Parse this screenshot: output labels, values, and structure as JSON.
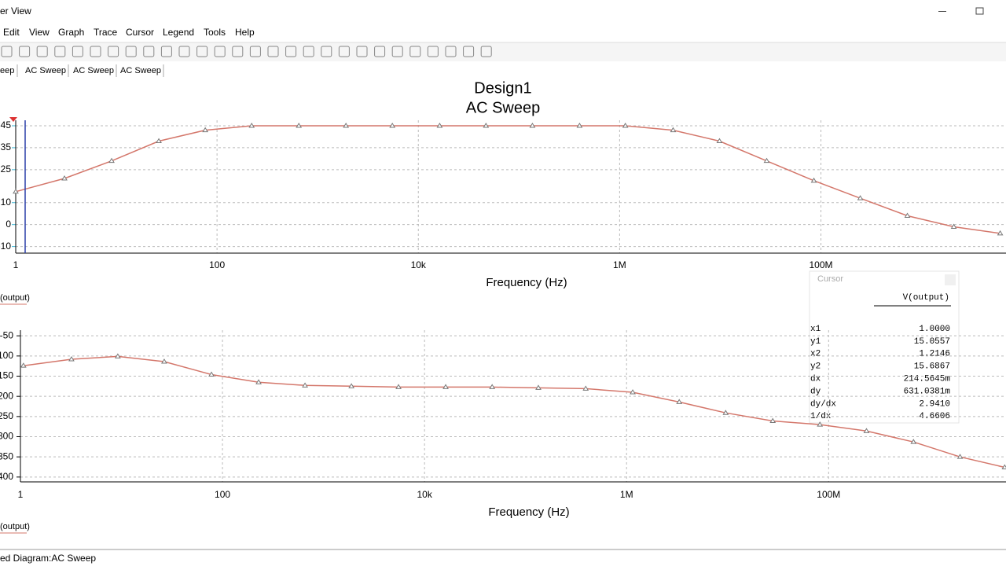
{
  "window_title": "er View",
  "menu": [
    "Edit",
    "View",
    "Graph",
    "Trace",
    "Cursor",
    "Legend",
    "Tools",
    "Help"
  ],
  "tabs": [
    "eep",
    "AC Sweep",
    "AC Sweep",
    "AC Sweep"
  ],
  "status": "ed Diagram:AC Sweep",
  "cursor_panel": {
    "title": "Cursor",
    "column": "V(output)",
    "rows": [
      [
        "x1",
        "1.0000"
      ],
      [
        "y1",
        "15.0557"
      ],
      [
        "x2",
        "1.2146"
      ],
      [
        "y2",
        "15.6867"
      ],
      [
        "dx",
        "214.5645m"
      ],
      [
        "dy",
        "631.0381m"
      ],
      [
        "dy/dx",
        "2.9410"
      ],
      [
        "1/dx",
        "4.6606"
      ]
    ]
  },
  "chart_data": [
    {
      "type": "line",
      "title": "Design1",
      "subtitle": "AC Sweep",
      "x_label": "Frequency (Hz)",
      "xscale": "log",
      "grid": true,
      "x": [
        1,
        3.05,
        8.97,
        26.4,
        76.4,
        221,
        650,
        1910,
        5520,
        16300,
        47000,
        136000,
        400000,
        1140000,
        3400000,
        9820000,
        28900000,
        85100000,
        246000000,
        723000000,
        2090000000,
        6040000000
      ],
      "series": [
        {
          "name": "(output)",
          "color": "#d4776b",
          "values": [
            15,
            21,
            29,
            38,
            43,
            45,
            45,
            45,
            45,
            45,
            45,
            45,
            45,
            45,
            43,
            38,
            29,
            20,
            12,
            4,
            -1,
            -4
          ]
        }
      ],
      "xlim": [
        1,
        6900000000
      ],
      "ylim": [
        -13,
        47.5
      ],
      "xticks": [
        1,
        100,
        {
          "value": 10000,
          "label": "10k"
        },
        {
          "value": 1000000,
          "label": "1M"
        },
        {
          "value": 100000000,
          "label": "100M"
        }
      ],
      "yticks": [
        -10,
        0,
        10,
        25,
        35,
        45
      ]
    },
    {
      "type": "line",
      "x_label": "Frequency (Hz)",
      "xscale": "log",
      "grid": true,
      "x": [
        1.07,
        3.2,
        9.2,
        26.5,
        77.8,
        228,
        656,
        1890,
        5530,
        16200,
        46700,
        134000,
        394000,
        1150000,
        3320000,
        9570000,
        28000000,
        82000000,
        237000000,
        692000000,
        2000000000,
        5530000000
      ],
      "series": [
        {
          "name": "(output)",
          "color": "#d4776b",
          "values": [
            -124,
            -108,
            -101,
            -114,
            -146,
            -165,
            -173,
            -175,
            -177,
            -177,
            -177,
            -179,
            -181,
            -190,
            -214,
            -241,
            -261,
            -270,
            -286,
            -313,
            -350,
            -376
          ]
        }
      ],
      "xlim": [
        1,
        5700000000
      ],
      "ylim": [
        -412,
        -36
      ],
      "xticks": [
        1,
        100,
        {
          "value": 10000,
          "label": "10k"
        },
        {
          "value": 1000000,
          "label": "1M"
        },
        {
          "value": 100000000,
          "label": "100M"
        }
      ],
      "yticks": [
        -400,
        -350,
        -300,
        -250,
        -200,
        -150,
        -100,
        -50
      ]
    }
  ]
}
